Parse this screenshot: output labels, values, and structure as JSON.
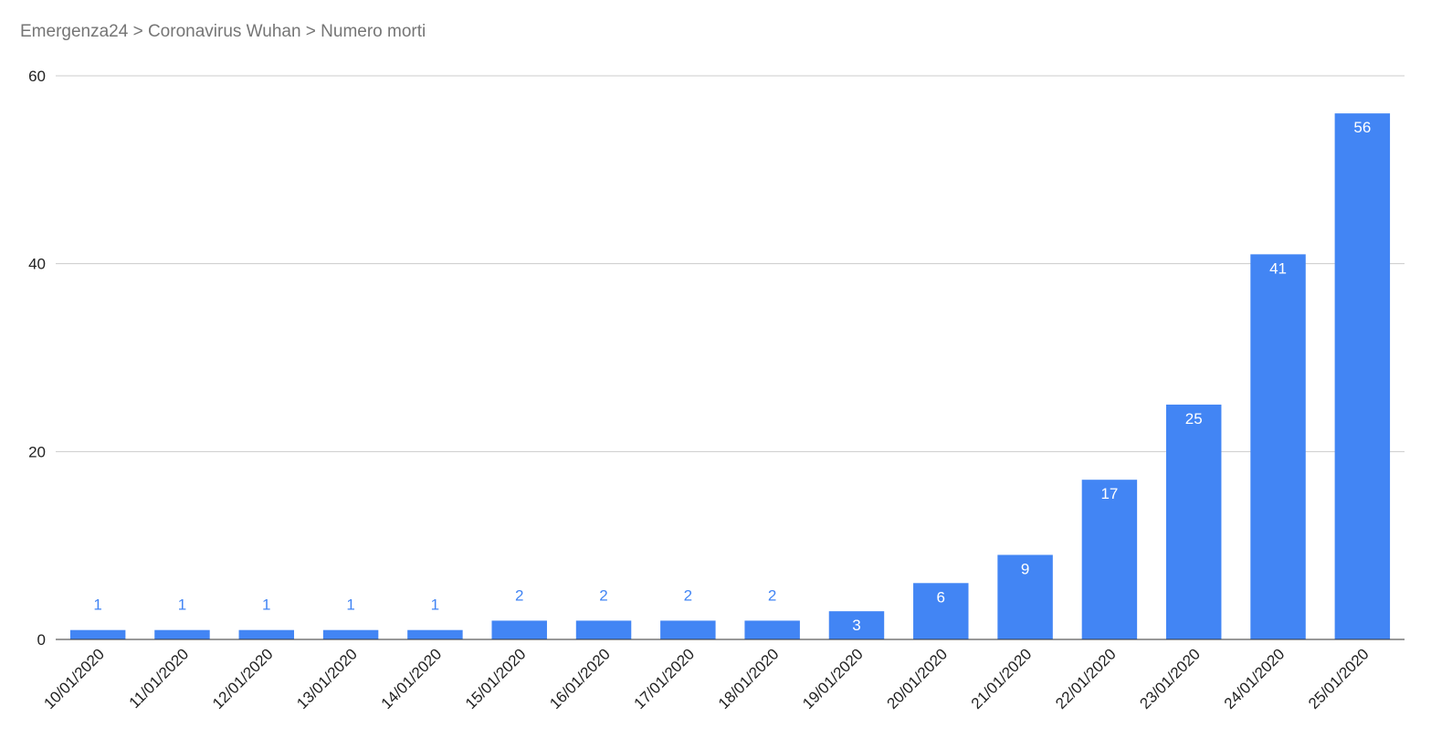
{
  "breadcrumb": "Emergenza24 > Coronavirus Wuhan > Numero morti",
  "chart_data": {
    "type": "bar",
    "title": "",
    "xlabel": "",
    "ylabel": "",
    "categories": [
      "10/01/2020",
      "11/01/2020",
      "12/01/2020",
      "13/01/2020",
      "14/01/2020",
      "15/01/2020",
      "16/01/2020",
      "17/01/2020",
      "18/01/2020",
      "19/01/2020",
      "20/01/2020",
      "21/01/2020",
      "22/01/2020",
      "23/01/2020",
      "24/01/2020",
      "25/01/2020"
    ],
    "values": [
      1,
      1,
      1,
      1,
      1,
      2,
      2,
      2,
      2,
      3,
      6,
      9,
      17,
      25,
      41,
      56
    ],
    "ylim": [
      0,
      60
    ],
    "yticks": [
      0,
      20,
      40,
      60
    ],
    "grid": true,
    "legend": "none",
    "bar_color": "#4285f4",
    "gridline_color": "#cccccc",
    "data_labels": true
  }
}
